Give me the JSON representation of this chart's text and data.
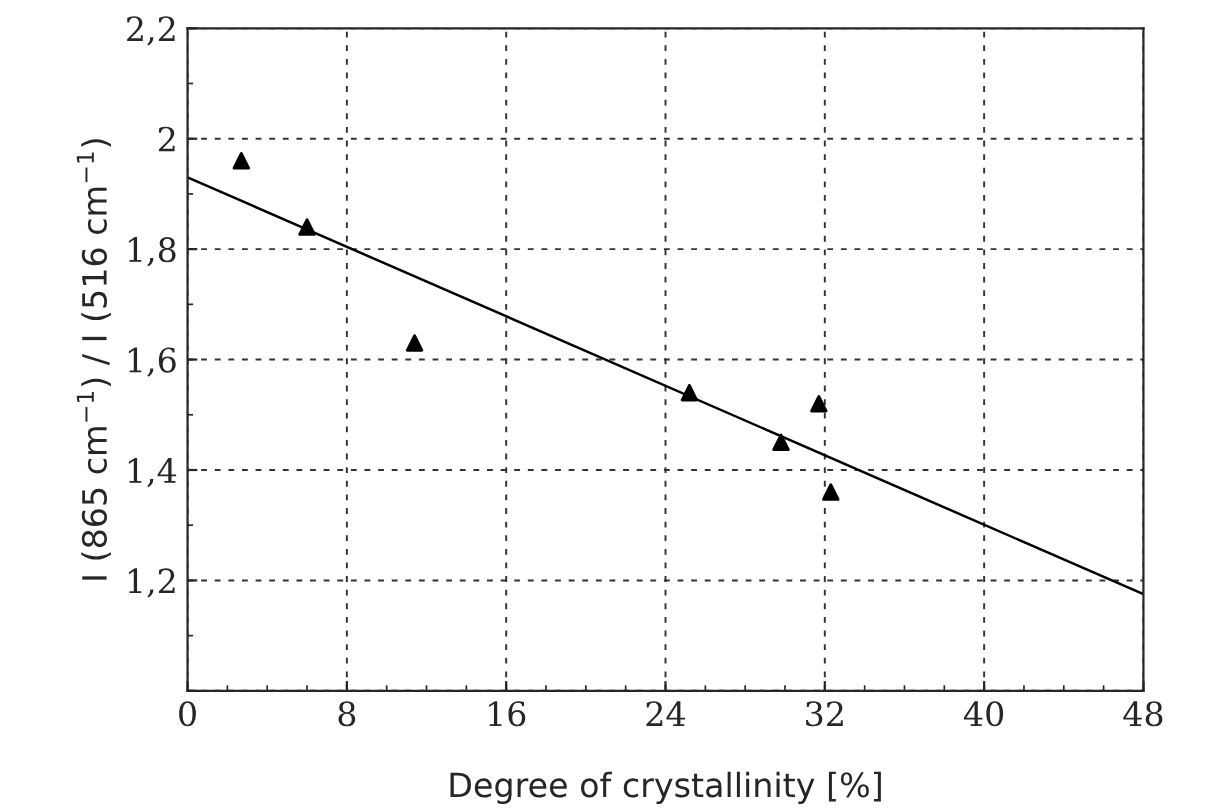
{
  "chart_data": {
    "type": "scatter",
    "xlabel": "Degree of crystallinity [%]",
    "ylabel": "I (865 cm$^{−1}$) / I (516 cm$^{−1}$)",
    "xlim": [
      0,
      48
    ],
    "xticks": [
      0,
      8,
      16,
      24,
      32,
      40,
      48
    ],
    "ylim": [
      1.0,
      2.2
    ],
    "yticks": [
      {
        "value": 1.0,
        "label": null
      },
      {
        "value": 1.2,
        "label": "1,2"
      },
      {
        "value": 1.4,
        "label": "1,4"
      },
      {
        "value": 1.6,
        "label": "1,6"
      },
      {
        "value": 1.8,
        "label": "1,8"
      },
      {
        "value": 2.0,
        "label": "2"
      },
      {
        "value": 2.2,
        "label": "2,2"
      }
    ],
    "grid": true,
    "legend": false,
    "series": [
      {
        "color": "#000000",
        "marker": "triangle",
        "x": [
          2.7,
          6.0,
          11.4,
          25.2,
          29.8,
          31.7,
          32.3
        ],
        "values": [
          1.96,
          1.84,
          1.63,
          1.54,
          1.45,
          1.52,
          1.36
        ]
      },
      {
        "type": "line",
        "color": "#000000",
        "line_style": "solid",
        "marker": "none",
        "x": [
          0,
          48
        ],
        "values": [
          1.93,
          1.175
        ]
      }
    ]
  }
}
